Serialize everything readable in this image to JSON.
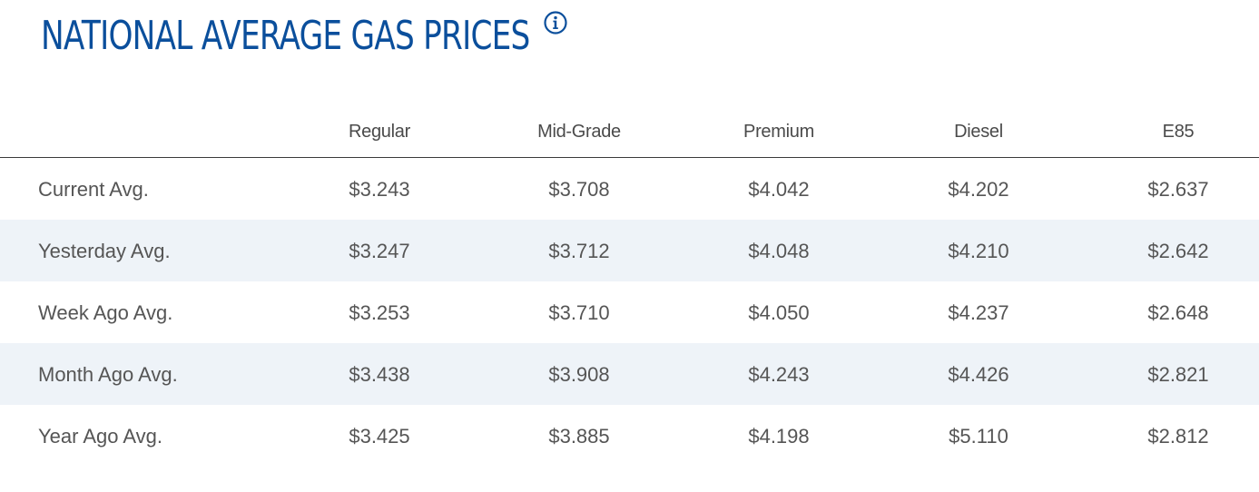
{
  "title": "NATIONAL AVERAGE GAS PRICES",
  "info_icon": "info-circle-icon",
  "colors": {
    "title": "#0b4f9c",
    "alt_row": "#eef3f8",
    "text": "#555555"
  },
  "columns": [
    "Regular",
    "Mid-Grade",
    "Premium",
    "Diesel",
    "E85"
  ],
  "rows": [
    {
      "label": "Current Avg.",
      "values": [
        "$3.243",
        "$3.708",
        "$4.042",
        "$4.202",
        "$2.637"
      ]
    },
    {
      "label": "Yesterday Avg.",
      "values": [
        "$3.247",
        "$3.712",
        "$4.048",
        "$4.210",
        "$2.642"
      ]
    },
    {
      "label": "Week Ago Avg.",
      "values": [
        "$3.253",
        "$3.710",
        "$4.050",
        "$4.237",
        "$2.648"
      ]
    },
    {
      "label": "Month Ago Avg.",
      "values": [
        "$3.438",
        "$3.908",
        "$4.243",
        "$4.426",
        "$2.821"
      ]
    },
    {
      "label": "Year Ago Avg.",
      "values": [
        "$3.425",
        "$3.885",
        "$4.198",
        "$5.110",
        "$2.812"
      ]
    }
  ]
}
